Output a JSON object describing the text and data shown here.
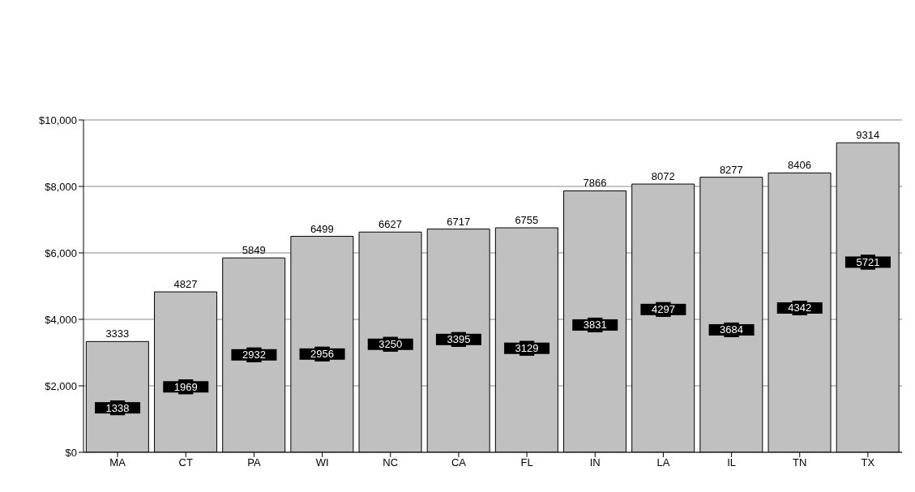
{
  "chart_data": {
    "type": "bar",
    "categories": [
      "MA",
      "CT",
      "PA",
      "WI",
      "NC",
      "CA",
      "FL",
      "IN",
      "LA",
      "IL",
      "TN",
      "TX"
    ],
    "series": [
      {
        "color": "#c0c0c0",
        "values": [
          3333,
          4827,
          5849,
          6499,
          6627,
          6717,
          6755,
          7866,
          8072,
          8277,
          8406,
          9314
        ]
      },
      {
        "type": "scatter",
        "color": "#000000",
        "marker": "square",
        "values": [
          1338,
          1969,
          2932,
          2956,
          3250,
          3395,
          3129,
          3831,
          4297,
          3684,
          4342,
          5721
        ]
      }
    ],
    "ylim": [
      0,
      10000
    ],
    "yticks": [
      {
        "value": 0,
        "label": "$0"
      },
      {
        "value": 2000,
        "label": "$2,000"
      },
      {
        "value": 4000,
        "label": "$4,000"
      },
      {
        "value": 6000,
        "label": "$6,000"
      },
      {
        "value": 8000,
        "label": "$8,000"
      },
      {
        "value": 10000,
        "label": "$10,000"
      }
    ],
    "grid": "y",
    "data_labels": true
  }
}
